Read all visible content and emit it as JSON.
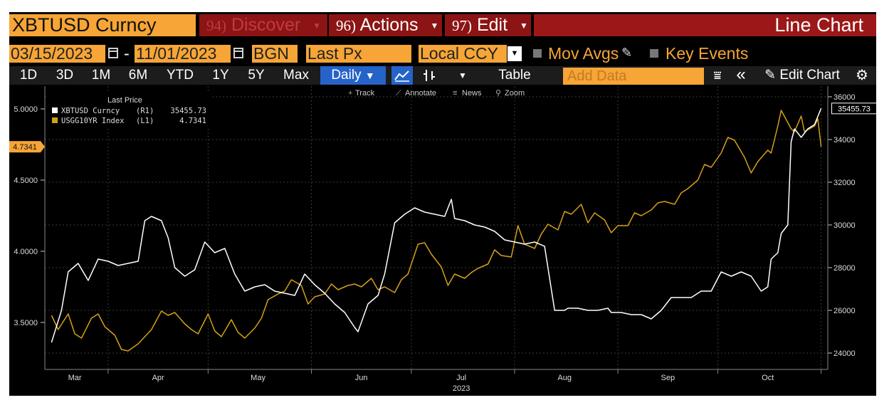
{
  "header": {
    "ticker": "XBTUSD Curncy",
    "menus": [
      {
        "num": "94)",
        "label": "Discover",
        "dim": true
      },
      {
        "num": "96)",
        "label": "Actions",
        "dim": false
      },
      {
        "num": "97)",
        "label": "Edit",
        "dim": false
      }
    ],
    "title": "Line Chart"
  },
  "controls": {
    "start_date": "03/15/2023",
    "end_date": "11/01/2023",
    "source": "BGN",
    "field": "Last Px",
    "currency": "Local CCY",
    "mov_avgs": "Mov Avgs",
    "key_events": "Key Events"
  },
  "toolbar": {
    "periods": [
      "1D",
      "3D",
      "1M",
      "6M",
      "YTD",
      "1Y",
      "5Y",
      "Max"
    ],
    "frequency": "Daily",
    "table": "Table",
    "add_data_placeholder": "Add Data",
    "edit_chart": "Edit Chart"
  },
  "chart_tools": [
    "Track",
    "Annotate",
    "News",
    "Zoom"
  ],
  "colors": {
    "orange": "#f6a536",
    "red": "#8c1414",
    "blue": "#2563c9",
    "btc_line": "#ffffff",
    "yield_line": "#d4a017"
  },
  "chart_data": {
    "type": "line",
    "xlabel": "2023",
    "x_ticks": [
      "Mar",
      "Apr",
      "May",
      "Jun",
      "Jul",
      "Aug",
      "Sep",
      "Oct"
    ],
    "legend_title": "Last Price",
    "legend_placement": "top-left",
    "grid": true,
    "y_left": {
      "ticks": [
        "3.5000",
        "4.0000",
        "4.5000",
        "5.0000"
      ],
      "range": [
        3.2,
        5.2
      ]
    },
    "y_right": {
      "ticks": [
        "24000",
        "26000",
        "28000",
        "30000",
        "32000",
        "34000",
        "36000"
      ],
      "range": [
        23500,
        36500
      ]
    },
    "series": [
      {
        "name": "XBTUSD Curncy",
        "axis": "R1",
        "last_value": "35455.73",
        "x": [
          "2023-03-15",
          "2023-03-18",
          "2023-03-20",
          "2023-03-23",
          "2023-03-26",
          "2023-03-29",
          "2023-04-01",
          "2023-04-04",
          "2023-04-07",
          "2023-04-10",
          "2023-04-12",
          "2023-04-14",
          "2023-04-17",
          "2023-04-19",
          "2023-04-21",
          "2023-04-24",
          "2023-04-27",
          "2023-04-30",
          "2023-05-03",
          "2023-05-06",
          "2023-05-09",
          "2023-05-12",
          "2023-05-15",
          "2023-05-18",
          "2023-05-21",
          "2023-05-24",
          "2023-05-27",
          "2023-05-30",
          "2023-06-02",
          "2023-06-05",
          "2023-06-08",
          "2023-06-11",
          "2023-06-14",
          "2023-06-15",
          "2023-06-18",
          "2023-06-21",
          "2023-06-23",
          "2023-06-26",
          "2023-06-29",
          "2023-07-02",
          "2023-07-05",
          "2023-07-08",
          "2023-07-11",
          "2023-07-13",
          "2023-07-14",
          "2023-07-17",
          "2023-07-20",
          "2023-07-23",
          "2023-07-26",
          "2023-07-29",
          "2023-08-01",
          "2023-08-04",
          "2023-08-07",
          "2023-08-10",
          "2023-08-13",
          "2023-08-16",
          "2023-08-17",
          "2023-08-20",
          "2023-08-23",
          "2023-08-26",
          "2023-08-29",
          "2023-08-30",
          "2023-09-02",
          "2023-09-05",
          "2023-09-08",
          "2023-09-11",
          "2023-09-14",
          "2023-09-17",
          "2023-09-20",
          "2023-09-23",
          "2023-09-26",
          "2023-09-29",
          "2023-10-02",
          "2023-10-05",
          "2023-10-08",
          "2023-10-11",
          "2023-10-14",
          "2023-10-16",
          "2023-10-17",
          "2023-10-19",
          "2023-10-20",
          "2023-10-22",
          "2023-10-23",
          "2023-10-24",
          "2023-10-26",
          "2023-10-28",
          "2023-10-30",
          "2023-11-01"
        ],
        "values": [
          24500,
          26000,
          27800,
          28200,
          27400,
          28400,
          28300,
          28100,
          28200,
          28300,
          30200,
          30400,
          30200,
          29400,
          28000,
          27600,
          27900,
          29200,
          28700,
          28900,
          27700,
          26900,
          27100,
          27200,
          26900,
          26800,
          26700,
          27700,
          27200,
          26800,
          26300,
          25900,
          25200,
          25000,
          26300,
          26700,
          27700,
          30100,
          30500,
          30800,
          30600,
          30500,
          30400,
          31200,
          30300,
          30200,
          30000,
          29900,
          29700,
          29300,
          29200,
          29100,
          29200,
          29000,
          26000,
          26000,
          26100,
          26100,
          26000,
          26000,
          26100,
          25900,
          25900,
          25800,
          25800,
          25600,
          26000,
          26600,
          26600,
          26600,
          26900,
          26900,
          27800,
          27600,
          27800,
          27600,
          26900,
          27100,
          28400,
          28700,
          29600,
          30000,
          33900,
          34500,
          34100,
          34500,
          34700,
          35455.73
        ]
      },
      {
        "name": "USGG10YR Index",
        "axis": "L1",
        "last_value": "4.7341",
        "x": [
          "2023-03-15",
          "2023-03-17",
          "2023-03-20",
          "2023-03-22",
          "2023-03-24",
          "2023-03-27",
          "2023-03-29",
          "2023-03-31",
          "2023-04-03",
          "2023-04-05",
          "2023-04-07",
          "2023-04-10",
          "2023-04-12",
          "2023-04-14",
          "2023-04-17",
          "2023-04-19",
          "2023-04-21",
          "2023-04-24",
          "2023-04-26",
          "2023-04-28",
          "2023-05-01",
          "2023-05-03",
          "2023-05-05",
          "2023-05-08",
          "2023-05-10",
          "2023-05-12",
          "2023-05-15",
          "2023-05-17",
          "2023-05-19",
          "2023-05-22",
          "2023-05-24",
          "2023-05-26",
          "2023-05-29",
          "2023-05-31",
          "2023-06-02",
          "2023-06-05",
          "2023-06-07",
          "2023-06-09",
          "2023-06-12",
          "2023-06-14",
          "2023-06-16",
          "2023-06-19",
          "2023-06-21",
          "2023-06-23",
          "2023-06-26",
          "2023-06-28",
          "2023-06-30",
          "2023-07-03",
          "2023-07-05",
          "2023-07-07",
          "2023-07-10",
          "2023-07-12",
          "2023-07-14",
          "2023-07-17",
          "2023-07-19",
          "2023-07-21",
          "2023-07-24",
          "2023-07-26",
          "2023-07-28",
          "2023-07-31",
          "2023-08-02",
          "2023-08-04",
          "2023-08-07",
          "2023-08-09",
          "2023-08-11",
          "2023-08-14",
          "2023-08-16",
          "2023-08-18",
          "2023-08-21",
          "2023-08-23",
          "2023-08-25",
          "2023-08-28",
          "2023-08-30",
          "2023-09-01",
          "2023-09-04",
          "2023-09-06",
          "2023-09-08",
          "2023-09-11",
          "2023-09-13",
          "2023-09-15",
          "2023-09-18",
          "2023-09-20",
          "2023-09-22",
          "2023-09-25",
          "2023-09-27",
          "2023-09-29",
          "2023-10-02",
          "2023-10-04",
          "2023-10-06",
          "2023-10-09",
          "2023-10-11",
          "2023-10-13",
          "2023-10-16",
          "2023-10-17",
          "2023-10-19",
          "2023-10-20",
          "2023-10-23",
          "2023-10-24",
          "2023-10-26",
          "2023-10-27",
          "2023-10-30",
          "2023-10-31",
          "2023-11-01"
        ],
        "values": [
          3.55,
          3.45,
          3.56,
          3.42,
          3.39,
          3.53,
          3.56,
          3.47,
          3.41,
          3.31,
          3.3,
          3.35,
          3.4,
          3.45,
          3.58,
          3.55,
          3.57,
          3.49,
          3.45,
          3.42,
          3.56,
          3.44,
          3.4,
          3.52,
          3.43,
          3.39,
          3.46,
          3.53,
          3.66,
          3.7,
          3.72,
          3.8,
          3.76,
          3.63,
          3.68,
          3.7,
          3.77,
          3.73,
          3.76,
          3.77,
          3.75,
          3.81,
          3.73,
          3.75,
          3.71,
          3.8,
          3.84,
          4.05,
          4.06,
          3.98,
          3.89,
          3.76,
          3.84,
          3.81,
          3.85,
          3.88,
          3.91,
          4.01,
          3.97,
          3.96,
          4.18,
          4.05,
          4.02,
          4.12,
          4.19,
          4.15,
          4.28,
          4.26,
          4.33,
          4.2,
          4.27,
          4.22,
          4.13,
          4.18,
          4.18,
          4.27,
          4.25,
          4.29,
          4.34,
          4.35,
          4.33,
          4.41,
          4.44,
          4.5,
          4.61,
          4.59,
          4.69,
          4.8,
          4.78,
          4.66,
          4.55,
          4.63,
          4.71,
          4.69,
          4.88,
          4.99,
          4.86,
          4.84,
          4.95,
          4.84,
          4.88,
          4.93,
          4.7341
        ]
      }
    ]
  }
}
